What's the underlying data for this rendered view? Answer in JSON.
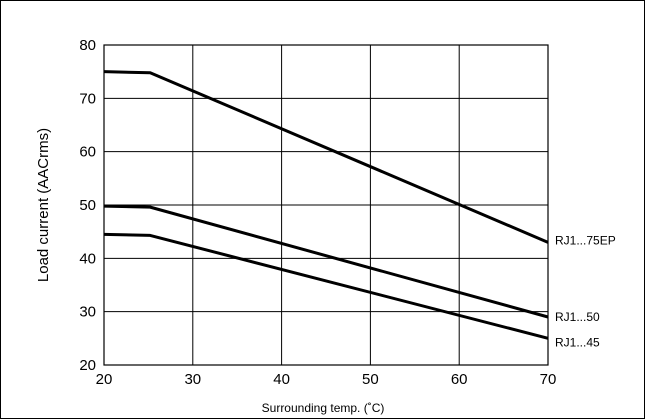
{
  "chart_data": {
    "type": "line",
    "title": "",
    "xlabel": "Surrounding temp. (˚C)",
    "ylabel": "Load current (AACrms)",
    "xlim": [
      20,
      70
    ],
    "ylim": [
      20,
      80
    ],
    "xticks": [
      20,
      30,
      40,
      50,
      60,
      70
    ],
    "yticks": [
      20,
      30,
      40,
      50,
      60,
      70,
      80
    ],
    "grid": true,
    "series": [
      {
        "name": "RJ1...75EP",
        "x": [
          20,
          25.2,
          70
        ],
        "y": [
          75,
          74.8,
          43
        ]
      },
      {
        "name": "RJ1...50",
        "x": [
          20,
          25.2,
          70
        ],
        "y": [
          49.8,
          49.6,
          29
        ]
      },
      {
        "name": "RJ1...45",
        "x": [
          20,
          25.2,
          70
        ],
        "y": [
          44.5,
          44.3,
          25
        ]
      }
    ]
  }
}
